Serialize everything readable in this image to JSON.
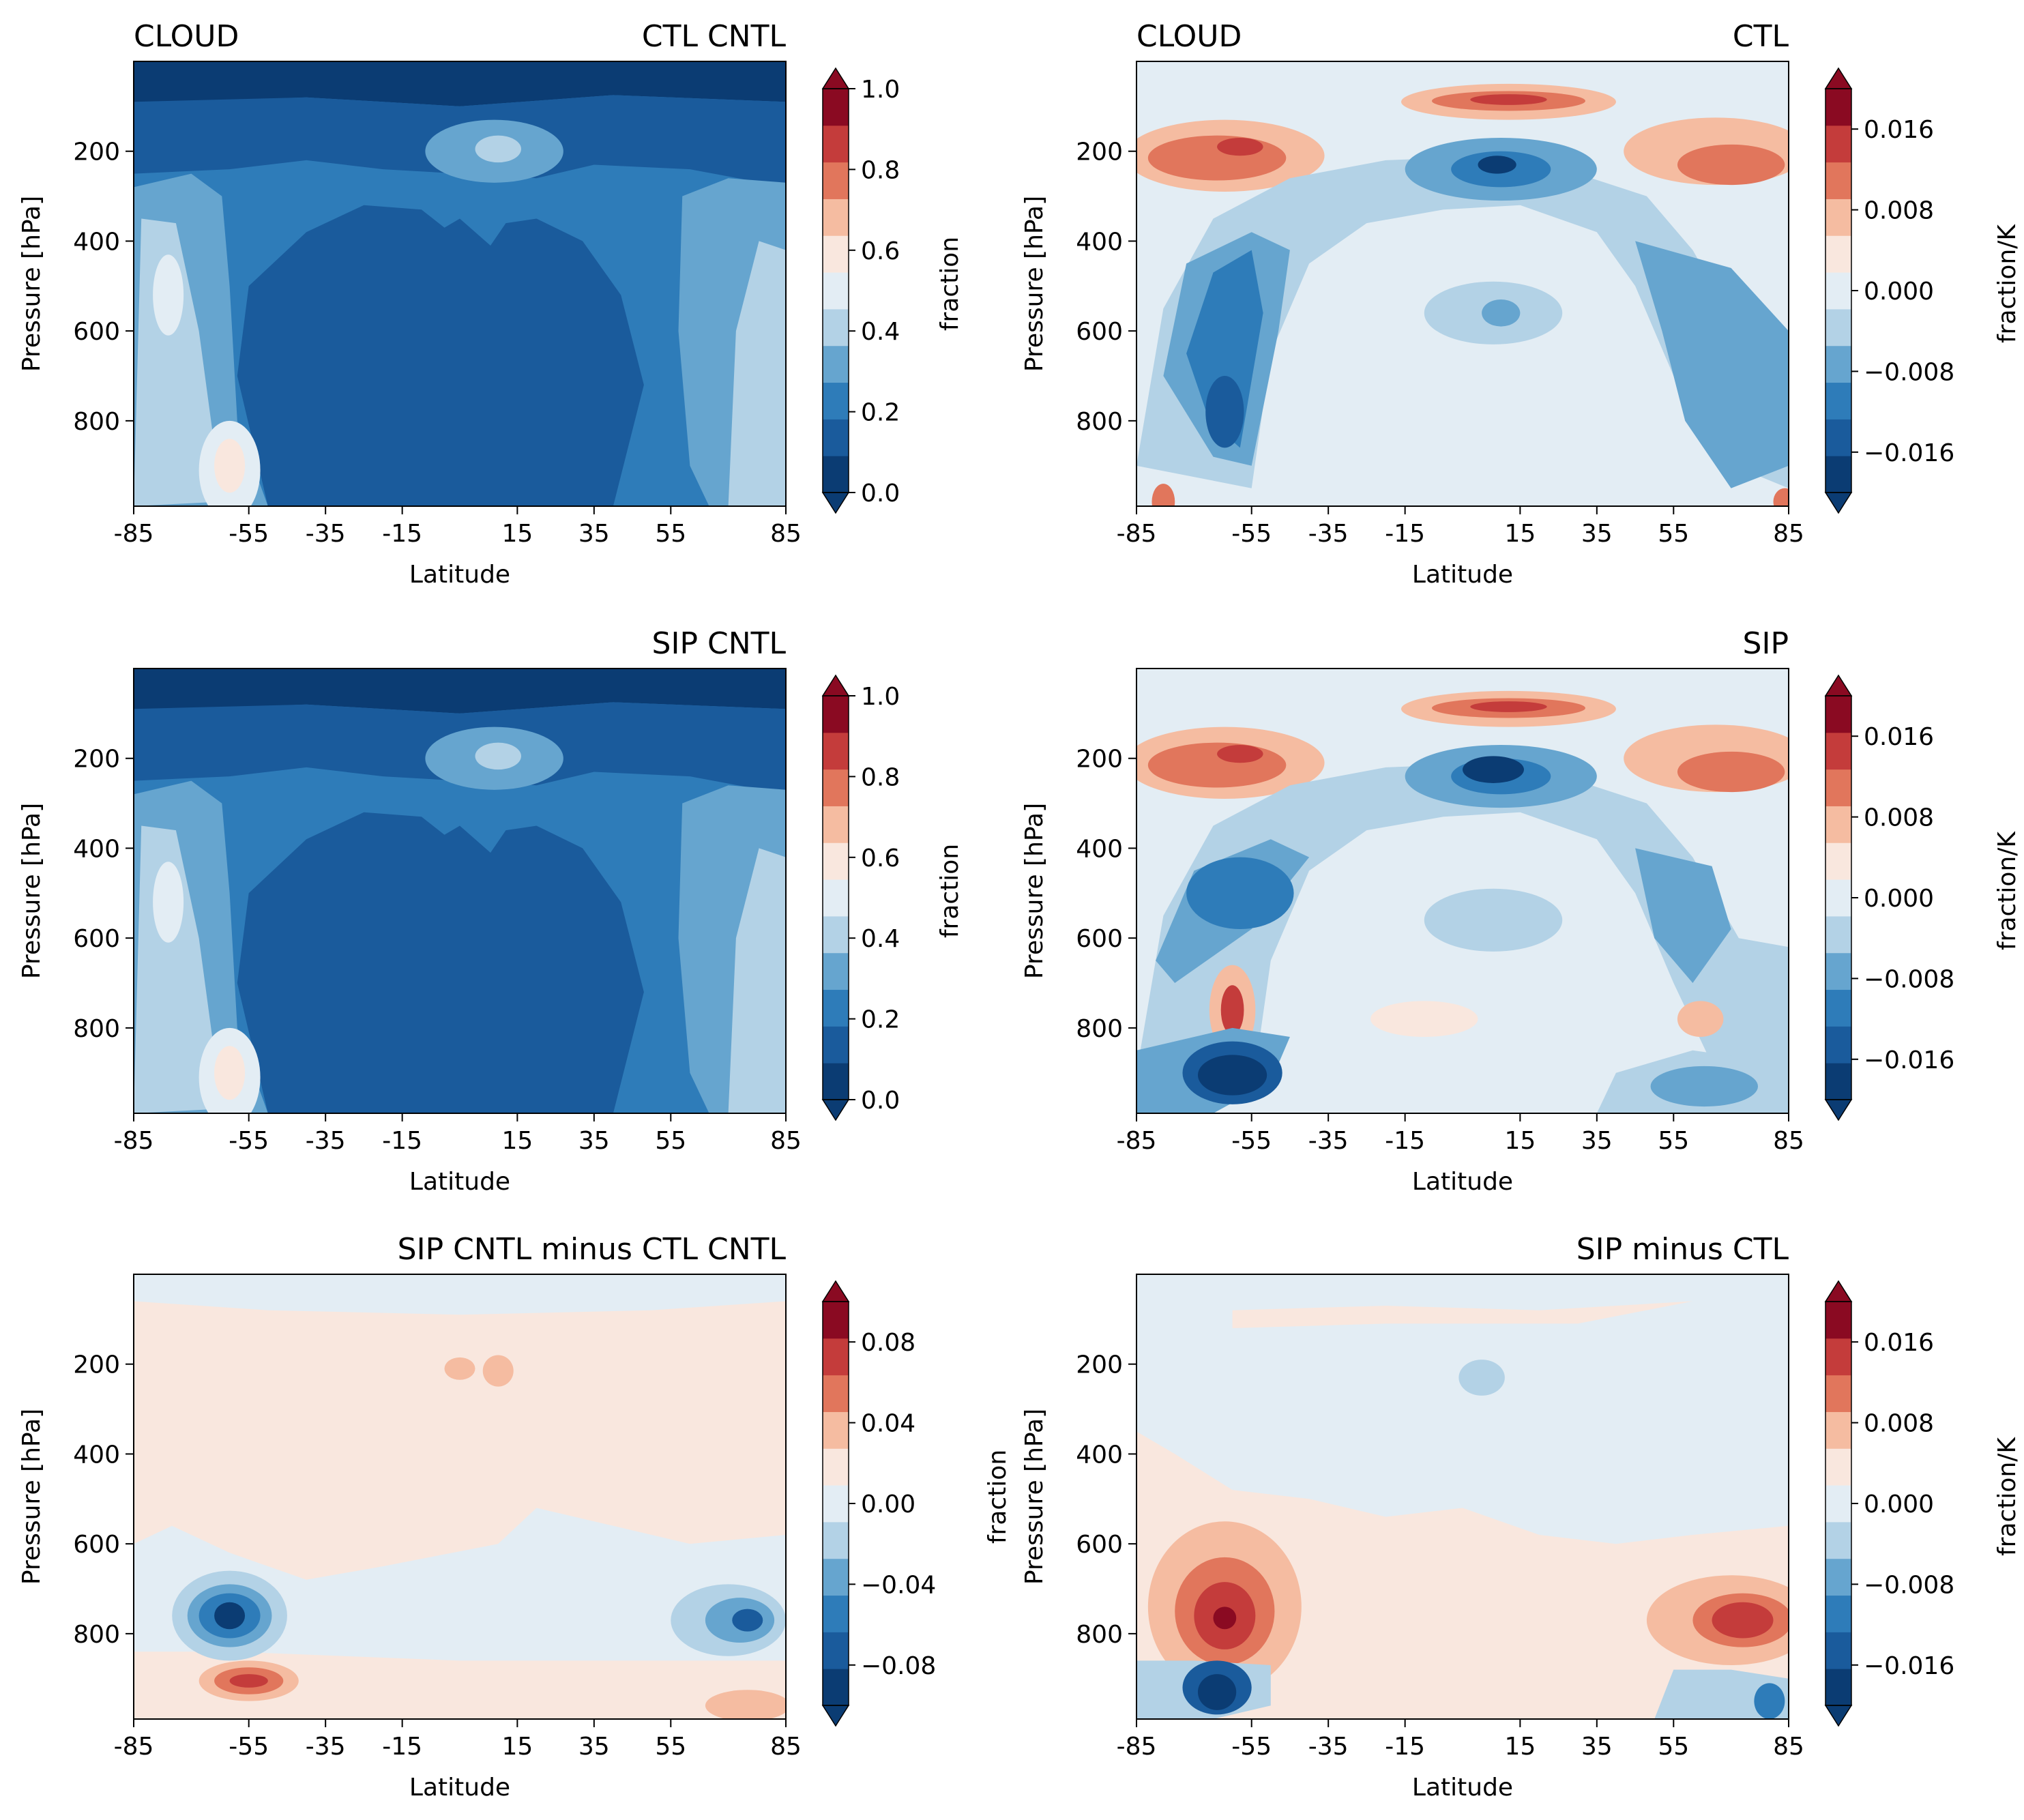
{
  "figure": {
    "layout": "3 rows x 2 columns",
    "x_ticks": [
      "-85",
      "-55",
      "-35",
      "-15",
      "15",
      "35",
      "55",
      "85"
    ],
    "x_tick_values": [
      -85,
      -55,
      -35,
      -15,
      15,
      35,
      55,
      85
    ],
    "y_ticks": [
      "200",
      "400",
      "600",
      "800"
    ],
    "y_tick_values": [
      200,
      400,
      600,
      800
    ],
    "ylim": [
      990,
      0
    ],
    "xlim": [
      -85,
      85
    ],
    "colormap": "RdBu_r",
    "colors": [
      "#0b3c73",
      "#1a5b9c",
      "#2e7cb9",
      "#66a5cf",
      "#b3d2e6",
      "#e3edf4",
      "#f9e7de",
      "#f5bca1",
      "#e1765c",
      "#c43c3b",
      "#8a0a22"
    ]
  },
  "chart_data": [
    {
      "type": "contour",
      "title_left": "CLOUD",
      "title_right": "CTL CNTL",
      "xlabel": "Latitude",
      "ylabel": "Pressure [hPa]",
      "colorbar": {
        "label": "fraction",
        "tick_labels": [
          "1.0",
          "0.8",
          "0.6",
          "0.4",
          "0.2",
          "0.0"
        ],
        "range": [
          0,
          1.0
        ]
      }
    },
    {
      "type": "contour",
      "title_left": "CLOUD",
      "title_right": "CTL",
      "xlabel": "Latitude",
      "ylabel": "Pressure [hPa]",
      "colorbar": {
        "label": "fraction/K",
        "tick_labels": [
          "0.016",
          "0.008",
          "0.000",
          "−0.008",
          "−0.016"
        ],
        "range": [
          -0.02,
          0.02
        ]
      }
    },
    {
      "type": "contour",
      "title_left": "",
      "title_right": "SIP CNTL",
      "xlabel": "Latitude",
      "ylabel": "Pressure [hPa]",
      "colorbar": {
        "label": "fraction",
        "tick_labels": [
          "1.0",
          "0.8",
          "0.6",
          "0.4",
          "0.2",
          "0.0"
        ],
        "range": [
          0,
          1.0
        ]
      }
    },
    {
      "type": "contour",
      "title_left": "",
      "title_right": "SIP",
      "xlabel": "Latitude",
      "ylabel": "Pressure [hPa]",
      "colorbar": {
        "label": "fraction/K",
        "tick_labels": [
          "0.016",
          "0.008",
          "0.000",
          "−0.008",
          "−0.016"
        ],
        "range": [
          -0.02,
          0.02
        ]
      }
    },
    {
      "type": "contour",
      "title_left": "",
      "title_right": "SIP CNTL minus CTL CNTL",
      "xlabel": "Latitude",
      "ylabel": "Pressure [hPa]",
      "colorbar": {
        "label": "fraction",
        "tick_labels": [
          "0.08",
          "0.04",
          "0.00",
          "−0.04",
          "−0.08"
        ],
        "range": [
          -0.1,
          0.1
        ]
      }
    },
    {
      "type": "contour",
      "title_left": "",
      "title_right": "SIP minus CTL",
      "xlabel": "Latitude",
      "ylabel": "Pressure [hPa]",
      "colorbar": {
        "label": "fraction/K",
        "tick_labels": [
          "0.016",
          "0.008",
          "0.000",
          "−0.008",
          "−0.016"
        ],
        "range": [
          -0.02,
          0.02
        ]
      }
    }
  ]
}
